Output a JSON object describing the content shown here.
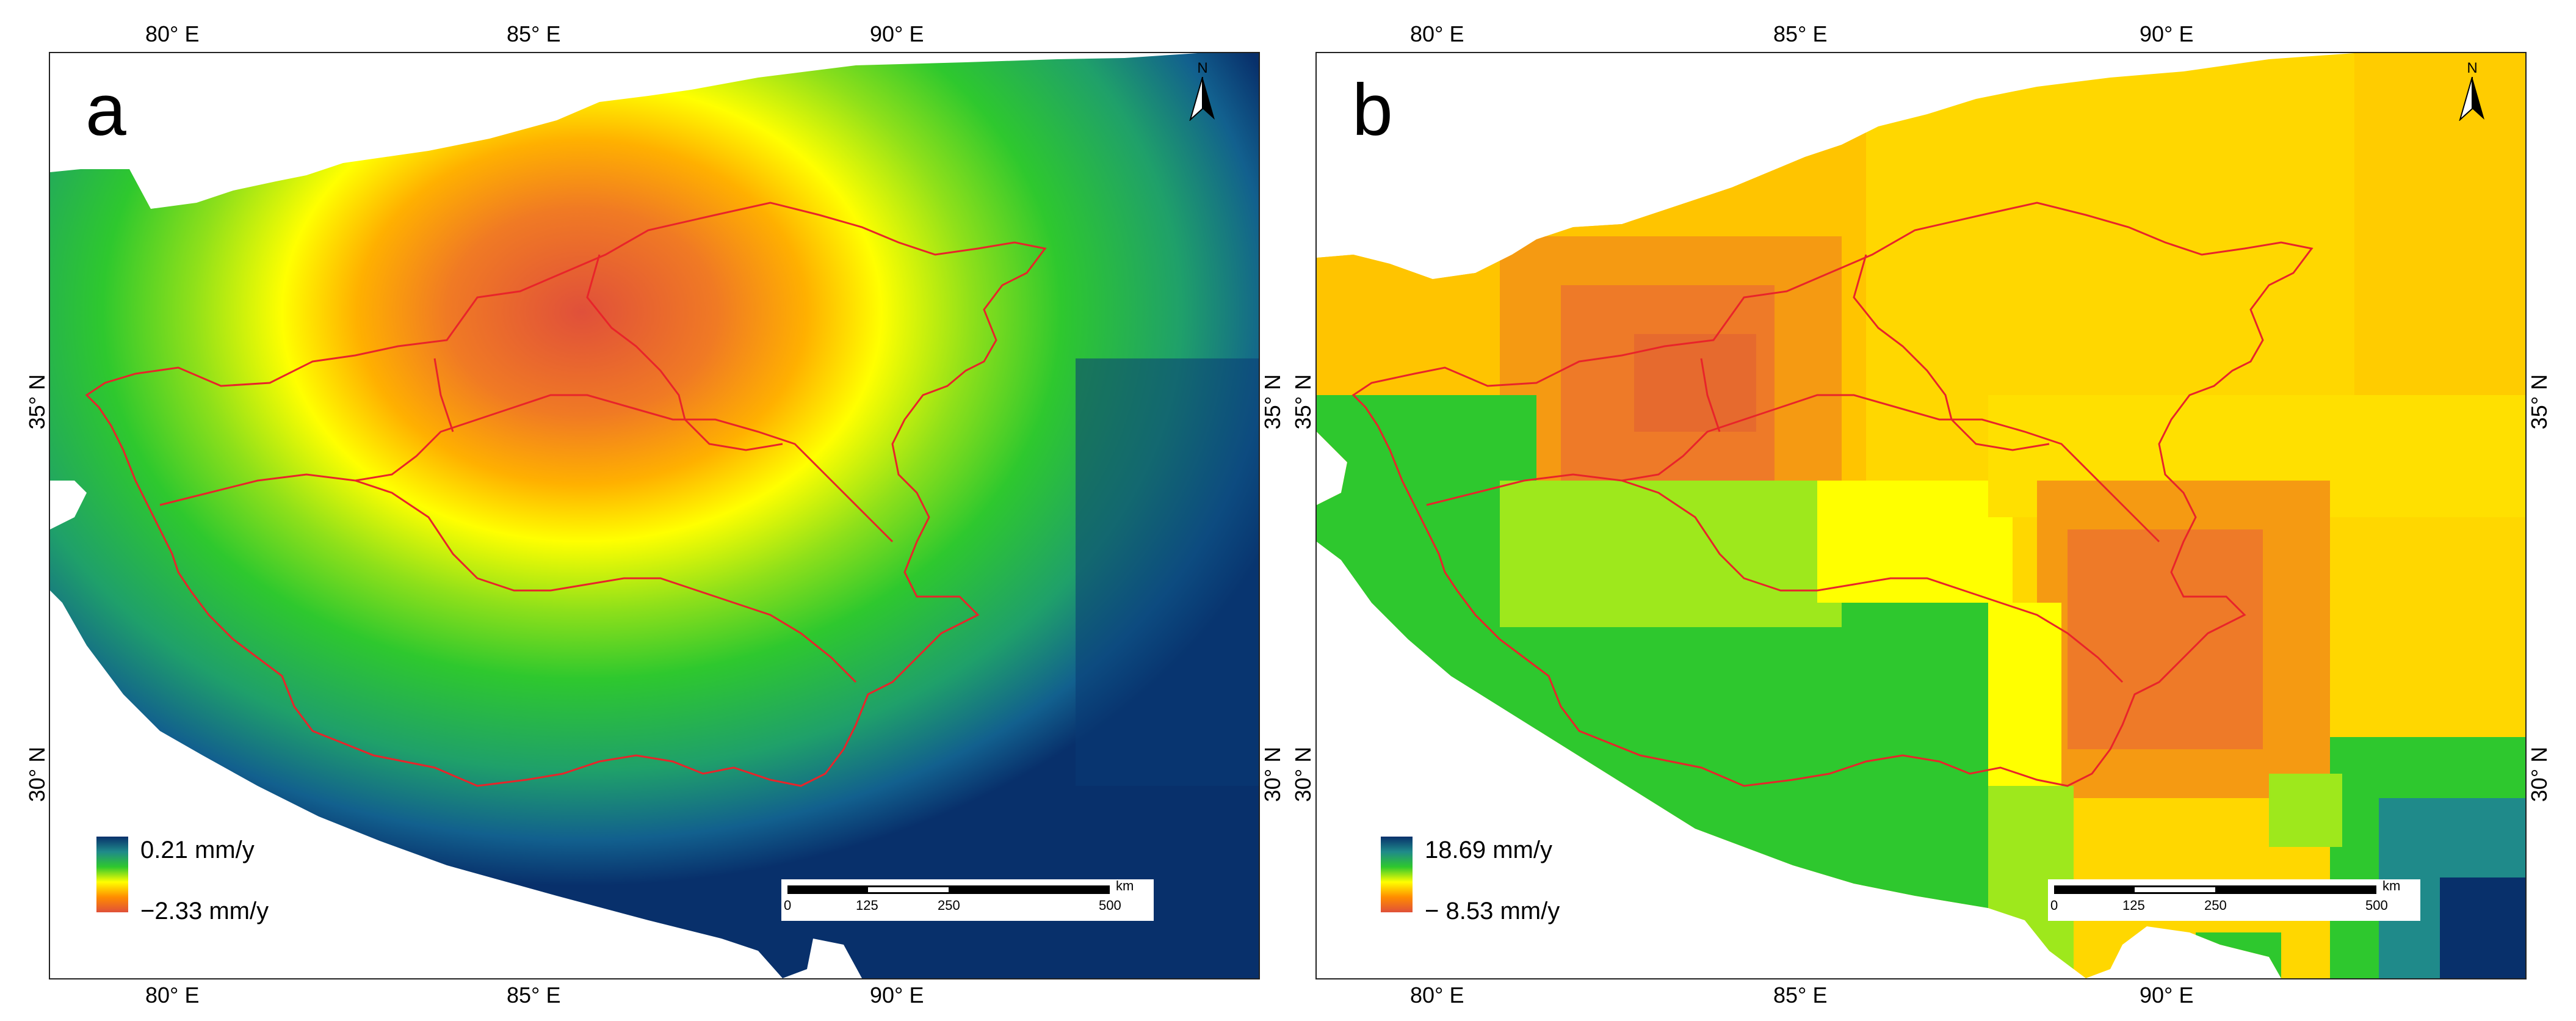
{
  "panels": {
    "a": {
      "letter": "a",
      "legend_high": "0.21 mm/y",
      "legend_low": "−2.33 mm/y",
      "north_label": "N",
      "scale": {
        "unit": "km",
        "ticks": [
          "0",
          "125",
          "250",
          "500"
        ]
      },
      "lon_labels": [
        "80° E",
        "85° E",
        "90° E"
      ],
      "lat_labels": [
        "35° N",
        "30° N"
      ]
    },
    "b": {
      "letter": "b",
      "legend_high": "18.69 mm/y",
      "legend_low": "− 8.53 mm/y",
      "north_label": "N",
      "scale": {
        "unit": "km",
        "ticks": [
          "0",
          "125",
          "250",
          "500"
        ]
      },
      "lon_labels": [
        "80° E",
        "85° E",
        "90° E"
      ],
      "lat_labels": [
        "35° N",
        "30° N"
      ]
    }
  },
  "colors": {
    "blue": "#08306b",
    "teal": "#1f8a8a",
    "green": "#2ec82e",
    "yellow": "#ffff00",
    "orange": "#ff8c00",
    "red": "#e0503a",
    "boundary": "#e8242a"
  }
}
